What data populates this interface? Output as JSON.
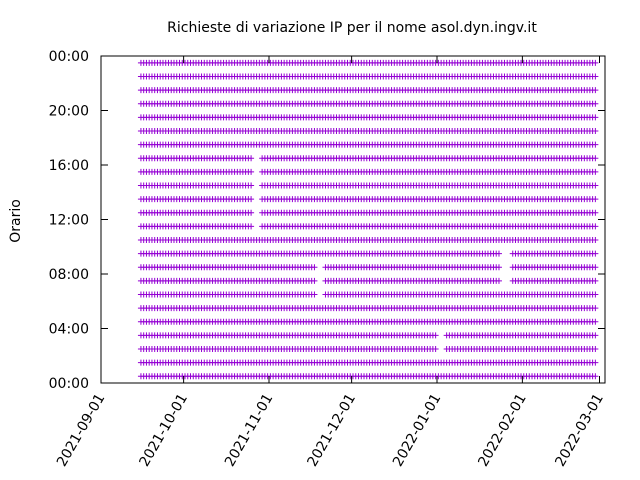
{
  "chart_data": {
    "type": "scatter",
    "title": "Richieste di variazione IP per il nome asol.dyn.ingv.it",
    "xlabel": "",
    "ylabel": "Orario",
    "x_ticks": [
      "2021-09-01",
      "2021-10-01",
      "2021-11-01",
      "2021-12-01",
      "2022-01-01",
      "2022-02-01",
      "2022-03-01"
    ],
    "y_ticks": [
      "00:00",
      "04:00",
      "08:00",
      "12:00",
      "16:00",
      "20:00",
      "00:00"
    ],
    "xlim": [
      "2021-09-01",
      "2022-03-03"
    ],
    "ylim": [
      0,
      24
    ],
    "y_unit": "hours",
    "marker": "plus",
    "point_color": "#9400d3",
    "grid": false,
    "legend": "none",
    "series": [
      {
        "sampling": "one point per day per hour slot",
        "x_start": "2021-09-15",
        "x_end": "2022-02-27",
        "hours": [
          0.5,
          1.5,
          2.5,
          3.5,
          4.5,
          5.5,
          6.5,
          7.5,
          8.5,
          9.5,
          10.5,
          11.5,
          12.5,
          13.5,
          14.5,
          15.5,
          16.5,
          17.5,
          18.5,
          19.5,
          20.5,
          21.5,
          22.5,
          23.5
        ],
        "gaps": [
          {
            "from": "2021-10-26",
            "to": "2021-10-28",
            "hour_from": 11,
            "hour_to": 17
          },
          {
            "from": "2021-11-18",
            "to": "2021-11-20",
            "hour_from": 6,
            "hour_to": 9
          },
          {
            "from": "2022-01-01",
            "to": "2022-01-03",
            "hour_from": 2,
            "hour_to": 4
          },
          {
            "from": "2022-01-24",
            "to": "2022-01-27",
            "hour_from": 7,
            "hour_to": 10
          }
        ]
      }
    ]
  }
}
